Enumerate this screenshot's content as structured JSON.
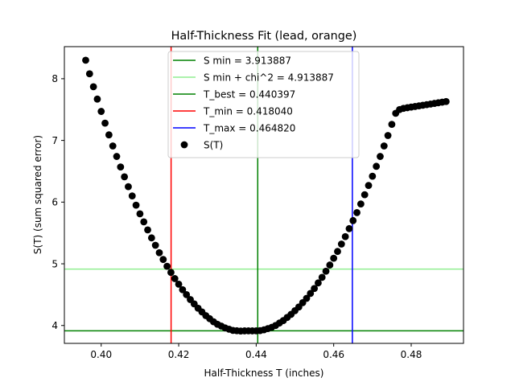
{
  "chart_data": {
    "type": "scatter",
    "title": "Half-Thickness Fit (lead, orange)",
    "xlabel": "Half-Thickness T (inches)",
    "ylabel": "S(T) (sum squared error)",
    "xlim": [
      0.3905,
      0.4935
    ],
    "ylim": [
      3.71,
      8.52
    ],
    "xticks": [
      0.4,
      0.42,
      0.44,
      0.46,
      0.48
    ],
    "xtick_labels": [
      "0.40",
      "0.42",
      "0.44",
      "0.46",
      "0.48"
    ],
    "yticks": [
      4,
      5,
      6,
      7,
      8
    ],
    "ytick_labels": [
      "4",
      "5",
      "6",
      "7",
      "8"
    ],
    "grid": false,
    "legend_position": "upper center",
    "lines": [
      {
        "id": "s-min",
        "orientation": "horizontal",
        "value": 3.913887,
        "color": "#008000",
        "label": "S min = 3.913887"
      },
      {
        "id": "s-min-chi2",
        "orientation": "horizontal",
        "value": 4.913887,
        "color": "#90ee90",
        "label": "S min + chi^2 = 4.913887"
      },
      {
        "id": "t-best",
        "orientation": "vertical",
        "value": 0.440397,
        "color": "#008000",
        "label": "T_best = 0.440397"
      },
      {
        "id": "t-min",
        "orientation": "vertical",
        "value": 0.41804,
        "color": "#ff0000",
        "label": "T_min = 0.418040"
      },
      {
        "id": "t-max",
        "orientation": "vertical",
        "value": 0.46482,
        "color": "#0000ff",
        "label": "T_max = 0.464820"
      }
    ],
    "scatter": {
      "label": "S(T)",
      "color": "#000000",
      "x": [
        0.396,
        0.397,
        0.398,
        0.399,
        0.4,
        0.401,
        0.402,
        0.403,
        0.404,
        0.405,
        0.406,
        0.407,
        0.408,
        0.409,
        0.41,
        0.411,
        0.412,
        0.413,
        0.414,
        0.415,
        0.416,
        0.417,
        0.418,
        0.419,
        0.42,
        0.421,
        0.422,
        0.423,
        0.424,
        0.425,
        0.426,
        0.427,
        0.428,
        0.429,
        0.43,
        0.431,
        0.432,
        0.433,
        0.434,
        0.435,
        0.436,
        0.437,
        0.438,
        0.439,
        0.44,
        0.441,
        0.442,
        0.443,
        0.444,
        0.445,
        0.446,
        0.447,
        0.448,
        0.449,
        0.45,
        0.451,
        0.452,
        0.453,
        0.454,
        0.455,
        0.456,
        0.457,
        0.458,
        0.459,
        0.46,
        0.461,
        0.462,
        0.463,
        0.464,
        0.465,
        0.466,
        0.467,
        0.468,
        0.469,
        0.47,
        0.471,
        0.472,
        0.473,
        0.474,
        0.475,
        0.476,
        0.477,
        0.478,
        0.479,
        0.48,
        0.481,
        0.482,
        0.483,
        0.484,
        0.485,
        0.486,
        0.487,
        0.488,
        0.489
      ],
      "y": [
        8.3,
        8.08,
        7.87,
        7.67,
        7.47,
        7.28,
        7.09,
        6.91,
        6.74,
        6.57,
        6.41,
        6.25,
        6.1,
        5.95,
        5.81,
        5.68,
        5.55,
        5.42,
        5.3,
        5.18,
        5.07,
        4.96,
        4.86,
        4.76,
        4.67,
        4.58,
        4.5,
        4.42,
        4.35,
        4.28,
        4.22,
        4.16,
        4.11,
        4.06,
        4.02,
        3.99,
        3.96,
        3.94,
        3.92,
        3.915,
        3.91,
        3.913,
        3.914,
        3.913,
        3.914,
        3.917,
        3.93,
        3.95,
        3.97,
        4.0,
        4.04,
        4.08,
        4.13,
        4.18,
        4.24,
        4.3,
        4.37,
        4.44,
        4.52,
        4.6,
        4.69,
        4.78,
        4.88,
        4.98,
        5.09,
        5.2,
        5.32,
        5.44,
        5.57,
        5.7,
        5.83,
        5.97,
        6.12,
        6.27,
        6.42,
        6.58,
        6.74,
        6.91,
        7.08,
        7.26,
        7.44,
        7.5,
        7.52,
        7.53,
        7.54,
        7.55,
        7.56,
        7.57,
        7.58,
        7.59,
        7.6,
        7.61,
        7.62,
        7.63
      ]
    },
    "legend": {
      "entries": [
        {
          "label": "S min = 3.913887",
          "color": "#008000",
          "kind": "line"
        },
        {
          "label": "S min + chi^2 = 4.913887",
          "color": "#90ee90",
          "kind": "line"
        },
        {
          "label": "T_best = 0.440397",
          "color": "#008000",
          "kind": "line"
        },
        {
          "label": "T_min = 0.418040",
          "color": "#ff0000",
          "kind": "line"
        },
        {
          "label": "T_max = 0.464820",
          "color": "#0000ff",
          "kind": "line"
        },
        {
          "label": "S(T)",
          "color": "#000000",
          "kind": "marker"
        }
      ]
    }
  }
}
